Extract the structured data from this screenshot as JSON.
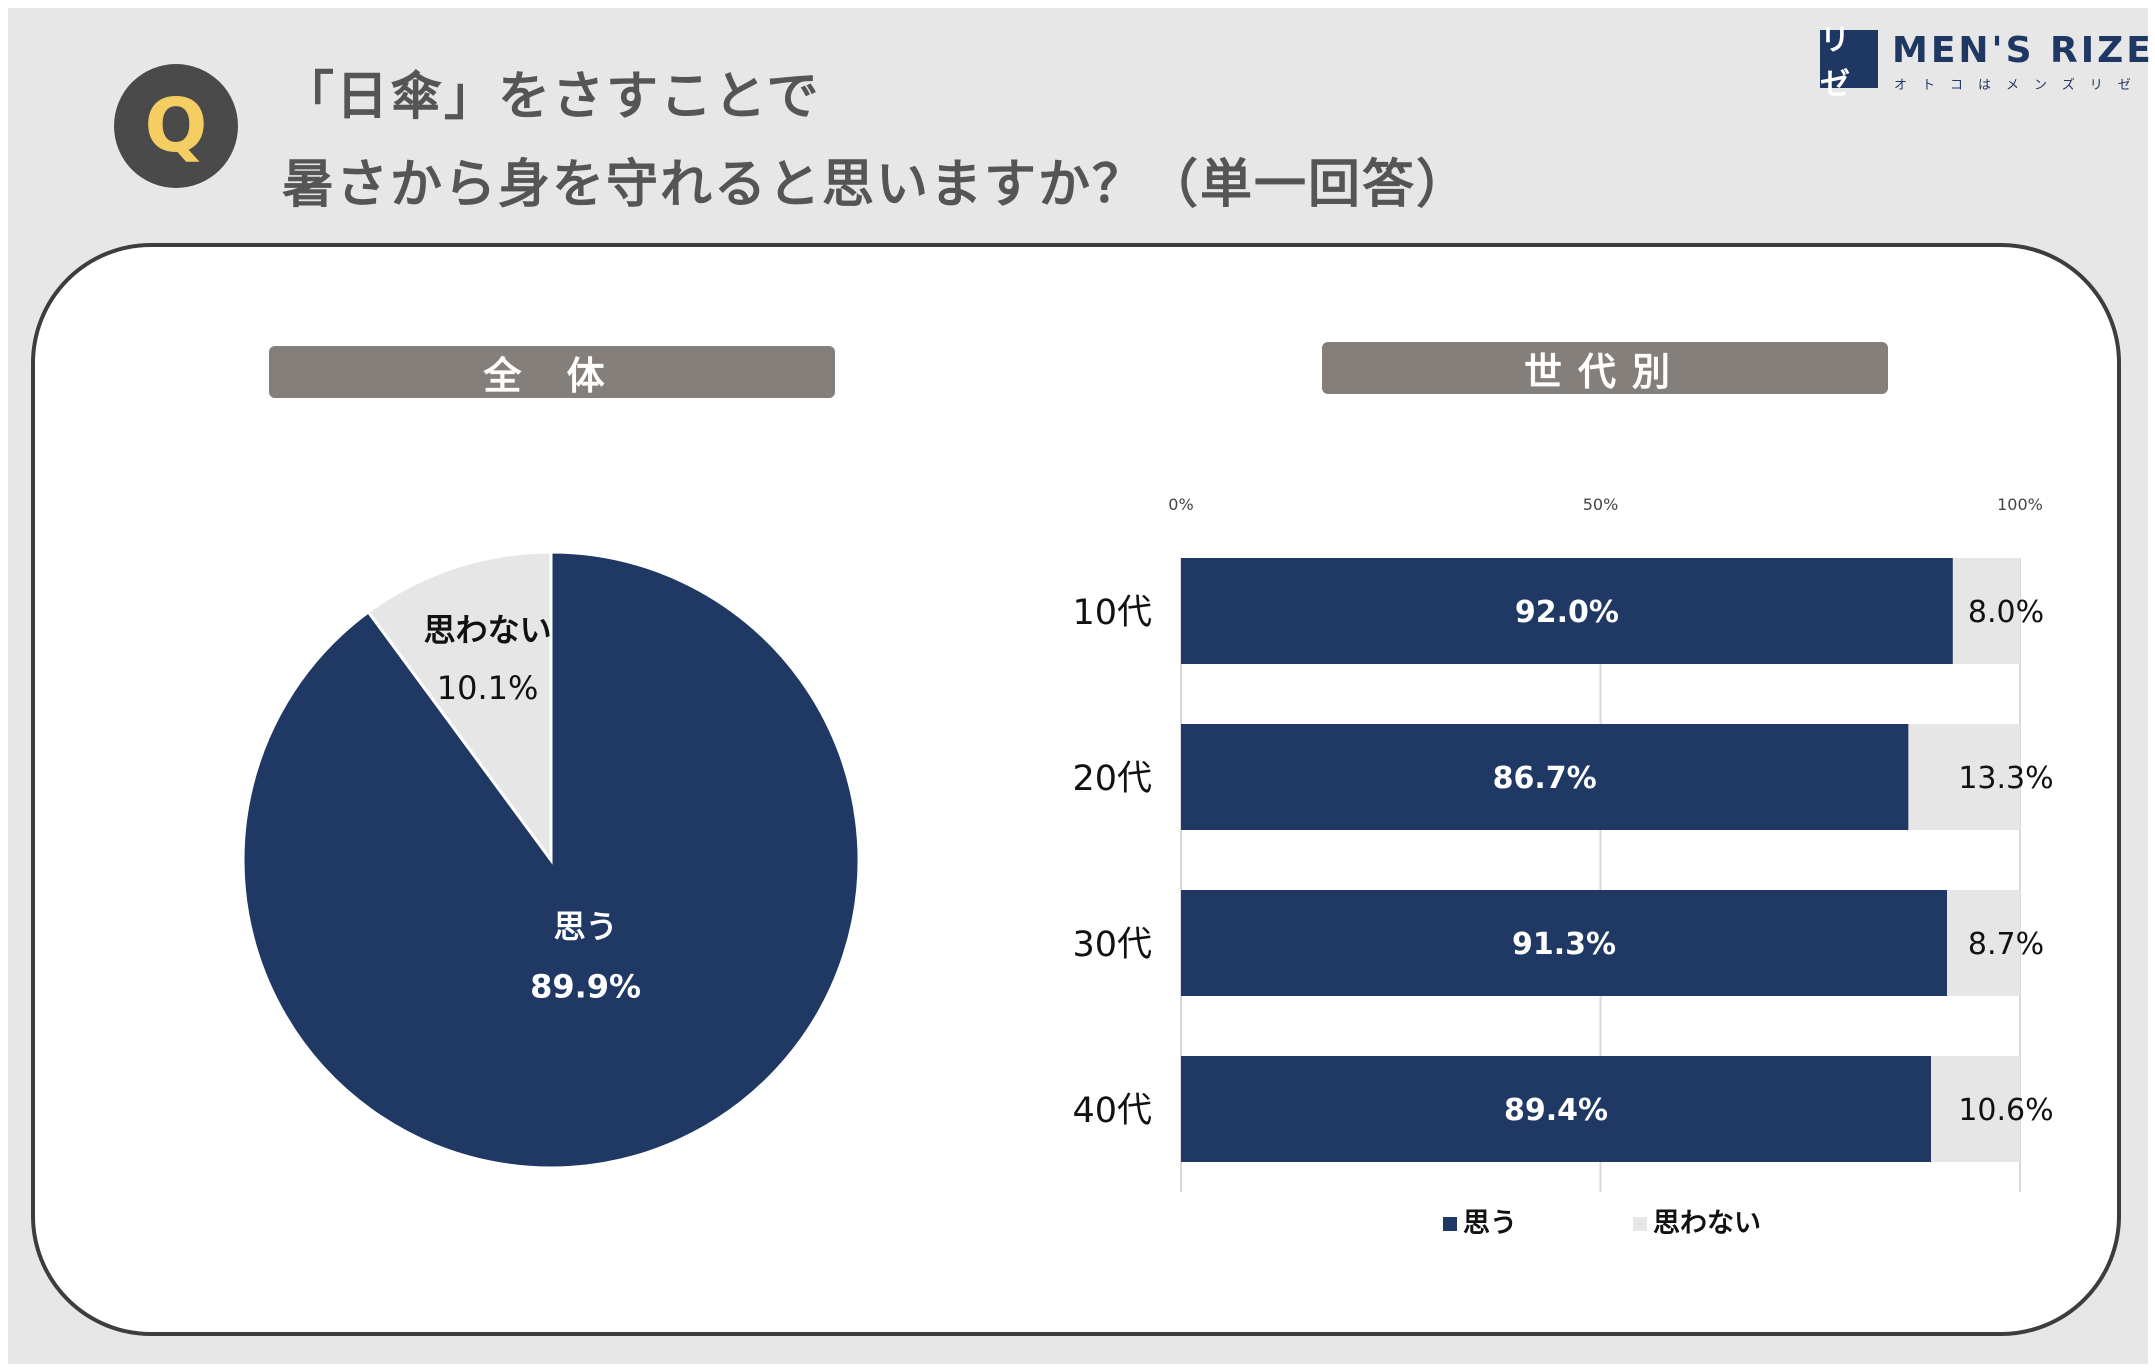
{
  "question": {
    "badge": "Q",
    "line1": "「日傘」をさすことで",
    "line2": "暑さから身を守れると思いますか？（単一回答）"
  },
  "logo": {
    "mark": "リゼ",
    "name": "MEN'S RIZE",
    "tagline": "オトコはメンズリゼ"
  },
  "sections": {
    "total": "全 体",
    "generation": "世代別"
  },
  "colors": {
    "yes": "#203864",
    "no": "#e6e6e6"
  },
  "chart_data": [
    {
      "type": "pie",
      "title": "全 体",
      "slices": [
        {
          "label": "思う",
          "value": 89.9,
          "display": "89.9%"
        },
        {
          "label": "思わない",
          "value": 10.1,
          "display": "10.1%"
        }
      ]
    },
    {
      "type": "bar",
      "orientation": "horizontal",
      "stacked": true,
      "title": "世代別",
      "categories": [
        "10代",
        "20代",
        "30代",
        "40代"
      ],
      "series": [
        {
          "name": "思う",
          "values": [
            92.0,
            86.7,
            91.3,
            89.4
          ],
          "labels": [
            "92.0%",
            "86.7%",
            "91.3%",
            "89.4%"
          ]
        },
        {
          "name": "思わない",
          "values": [
            8.0,
            13.3,
            8.7,
            10.6
          ],
          "labels": [
            "8.0%",
            "13.3%",
            "8.7%",
            "10.6%"
          ]
        }
      ],
      "xlim": [
        0,
        100
      ],
      "xticks": [
        "0%",
        "50%",
        "100%"
      ],
      "legend": "bottom"
    }
  ]
}
